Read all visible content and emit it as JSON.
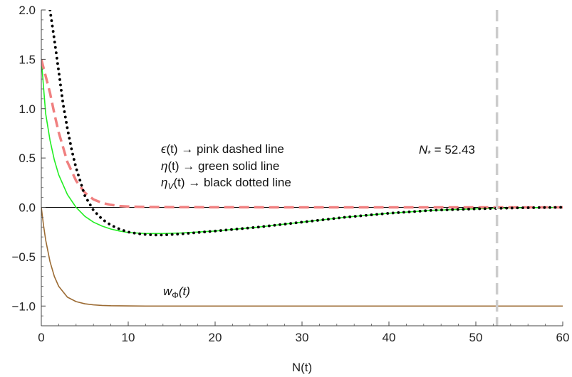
{
  "chart_data": {
    "type": "line",
    "title": "",
    "xlabel": "N(t)",
    "ylabel": "",
    "xlim": [
      0,
      60
    ],
    "ylim": [
      -1.2,
      2.0
    ],
    "x_ticks": [
      0,
      10,
      20,
      30,
      40,
      50,
      60
    ],
    "y_ticks": [
      -1.0,
      -0.5,
      0.0,
      0.5,
      1.0,
      1.5,
      2.0
    ],
    "x_tick_labels": [
      "0",
      "10",
      "20",
      "30",
      "40",
      "50",
      "60"
    ],
    "y_tick_labels": [
      "−1.0",
      "−0.5",
      "0.0",
      "0.5",
      "1.0",
      "1.5",
      "2.0"
    ],
    "grid": false,
    "colors": {
      "epsilon": "#f08080",
      "eta": "#22ee22",
      "eta_v": "#000000",
      "w_phi": "#9c6b33",
      "n_star": "#cccccc",
      "zero_line": "#000000"
    },
    "series": [
      {
        "key": "epsilon",
        "style": "dashed",
        "x": [
          0,
          0.5,
          1,
          1.5,
          2,
          3,
          4,
          5,
          6,
          7,
          8,
          9,
          10,
          12,
          15,
          20,
          30,
          40,
          50,
          60
        ],
        "y": [
          1.5,
          1.33,
          1.16,
          0.95,
          0.76,
          0.46,
          0.27,
          0.15,
          0.08,
          0.045,
          0.025,
          0.014,
          0.008,
          0.004,
          0.002,
          0.001,
          0.0,
          0.0,
          0.0,
          0.0
        ]
      },
      {
        "key": "eta",
        "style": "solid",
        "x": [
          0,
          0.5,
          1,
          1.5,
          2,
          3,
          4,
          5,
          6,
          7,
          8,
          9,
          10,
          12,
          14,
          16,
          20,
          25,
          30,
          35,
          40,
          45,
          50,
          55,
          60
        ],
        "y": [
          1.5,
          0.95,
          0.68,
          0.48,
          0.33,
          0.13,
          0.0,
          -0.09,
          -0.15,
          -0.19,
          -0.22,
          -0.24,
          -0.255,
          -0.265,
          -0.265,
          -0.26,
          -0.24,
          -0.2,
          -0.15,
          -0.1,
          -0.06,
          -0.03,
          -0.015,
          -0.005,
          0.0
        ]
      },
      {
        "key": "eta_v",
        "style": "dotted",
        "x": [
          1,
          1.5,
          2,
          2.5,
          3,
          3.5,
          4,
          5,
          6,
          7,
          8,
          9,
          10,
          11,
          12,
          13,
          14,
          15,
          16,
          18,
          20,
          25,
          30,
          35,
          40,
          45,
          50,
          55,
          60
        ],
        "y": [
          2.0,
          1.7,
          1.38,
          1.05,
          0.8,
          0.58,
          0.4,
          0.12,
          -0.03,
          -0.12,
          -0.18,
          -0.22,
          -0.25,
          -0.265,
          -0.275,
          -0.28,
          -0.28,
          -0.275,
          -0.27,
          -0.255,
          -0.24,
          -0.2,
          -0.15,
          -0.1,
          -0.06,
          -0.03,
          -0.015,
          -0.005,
          0.0
        ]
      },
      {
        "key": "w_phi",
        "style": "solid",
        "x": [
          0,
          0.25,
          0.5,
          1,
          1.5,
          2,
          3,
          4,
          5,
          6,
          7,
          8,
          10,
          12,
          15,
          20,
          30,
          40,
          50,
          60
        ],
        "y": [
          0.0,
          -0.18,
          -0.33,
          -0.55,
          -0.7,
          -0.8,
          -0.91,
          -0.955,
          -0.977,
          -0.988,
          -0.994,
          -0.997,
          -0.999,
          -1.0,
          -1.0,
          -1.0,
          -1.0,
          -1.0,
          -1.0,
          -1.0
        ]
      }
    ],
    "vertical_line_x": 52.43,
    "legend": {
      "lines": [
        {
          "sym": "ϵ",
          "sub": "",
          "text": "(t) → pink dashed line"
        },
        {
          "sym": "η",
          "sub": "",
          "text": "(t) → green solid line"
        },
        {
          "sym": "η",
          "sub": "V",
          "text": "(t) → black dotted line"
        }
      ]
    },
    "annotations": {
      "n_star": {
        "sym": "N",
        "sub": "*",
        "text": " = 52.43"
      },
      "w_phi": {
        "sym": "w",
        "sub": "Φ",
        "text": "(t)"
      }
    }
  }
}
